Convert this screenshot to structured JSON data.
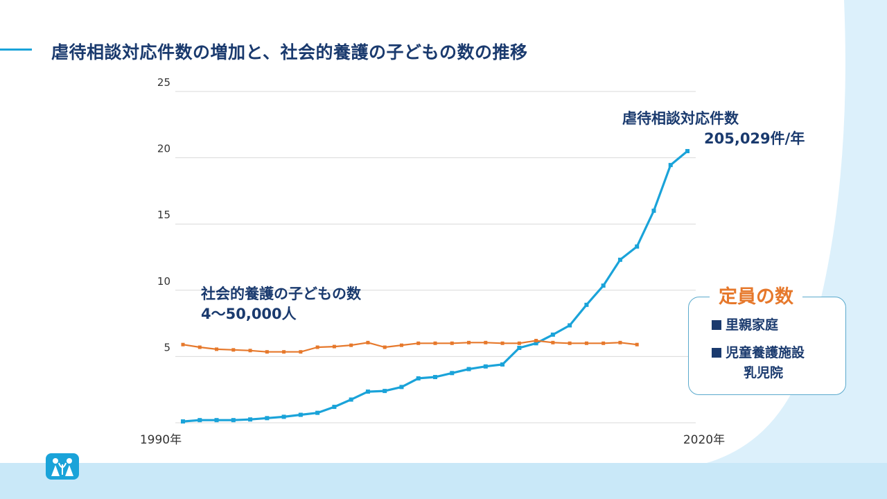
{
  "title": "虐待相談対応件数の増加と、社会的養護の子どもの数の推移",
  "annotations": {
    "abuse_label": "虐待相談対応件数",
    "abuse_value": "205,029件/年",
    "care_label": "社会的養護の子どもの数",
    "care_value": "4〜50,000人"
  },
  "legend": {
    "title": "定員の数",
    "items": [
      "里親家庭",
      "児童養護施設",
      "乳児院"
    ]
  },
  "colors": {
    "abuse_series": "#1aa3d9",
    "care_series": "#e6782b",
    "text_navy": "#1a3a6e",
    "background_wave": "#c9e8f8"
  },
  "chart_data": {
    "type": "line",
    "ylim": [
      0,
      25
    ],
    "yticks": [
      "25",
      "20",
      "15",
      "10",
      "5"
    ],
    "x_labels": [
      "1990年",
      "2020年"
    ],
    "x_start": 1990,
    "grid": true,
    "series": [
      {
        "name": "虐待相談対応件数",
        "color": "#1aa3d9",
        "values": [
          0.1,
          0.2,
          0.2,
          0.2,
          0.25,
          0.35,
          0.45,
          0.6,
          0.75,
          1.2,
          1.75,
          2.35,
          2.4,
          2.7,
          3.35,
          3.45,
          3.75,
          4.05,
          4.25,
          4.4,
          5.65,
          6.0,
          6.65,
          7.35,
          8.9,
          10.35,
          12.3,
          13.3,
          16.0,
          19.45,
          20.5
        ]
      },
      {
        "name": "社会的養護の子どもの数",
        "color": "#e6782b",
        "values": [
          5.9,
          5.7,
          5.55,
          5.5,
          5.45,
          5.35,
          5.35,
          5.35,
          5.7,
          5.75,
          5.85,
          6.05,
          5.7,
          5.85,
          6.0,
          6.0,
          6.0,
          6.05,
          6.05,
          6.0,
          6.0,
          6.2,
          6.05,
          6.0,
          6.0,
          6.0,
          6.05,
          5.9
        ]
      }
    ]
  }
}
